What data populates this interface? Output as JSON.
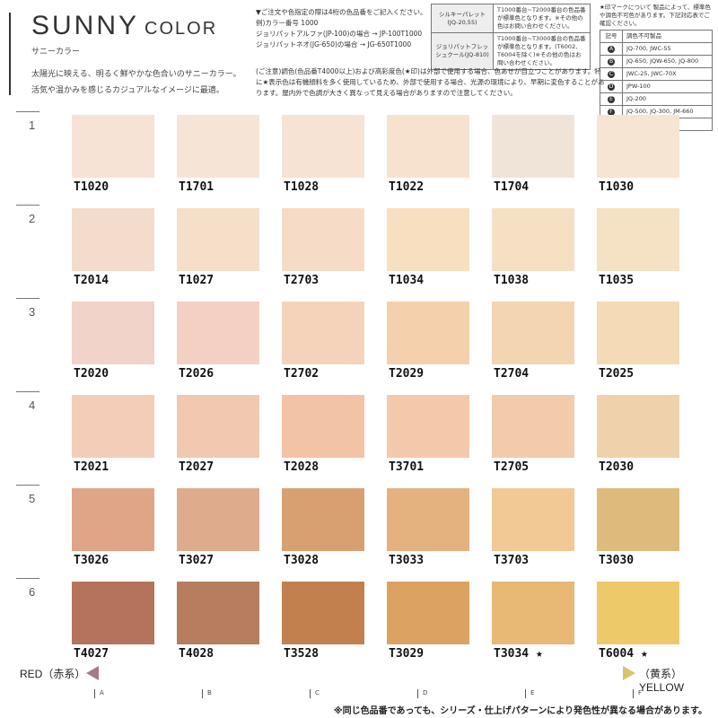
{
  "header": {
    "title": "SUNNY",
    "title_suffix": "COLOR",
    "subtitle": "サニーカラー",
    "description": [
      "太陽光に映える、明るく鮮やかな色合いのサニーカラー。",
      "活気や温かみを感じるカジュアルなイメージに最適。"
    ]
  },
  "order_notes": [
    "▼ご注文や色指定の際は4桁の色品番をご記入ください。",
    "例)カラー番号 1000",
    "ジョリパットアルファ(JP-100)の場合 → JP-100T1000",
    "ジョリパットネオ(JG-650)の場合 → JG-650T1000"
  ],
  "product_table": {
    "rows": [
      [
        "シルキーパレット(JQ-20,55)",
        "T1000番台~T2000番台の色品番が標準色となります。※その他の色はお問い合わせください。"
      ],
      [
        "ジョリパットフレッシュクール(JQ-810)",
        "T1000番台~T3000番台の色品番が標準色となります。(T6002、T6004を除く)※その他の色はお問い合わせください。"
      ]
    ]
  },
  "caution": "(ご注意)調色(色品番T4000以上)および高彩度色(★印)は外部で使用する場合、色あせが目立つことがあります。特に★表示色は有機顔料を多く使用しているため、外部で使用する場合、光源の環境により、早期に変色することがあります。屋内外で色調が大きく異なって見える場合がありますので注意してください。",
  "legend": {
    "note": "★印マークについて 製品によって、標準色や調色不可色があります。下記対応表でご確認ください。",
    "header": [
      "記号",
      "調色不可製品"
    ],
    "rows": [
      [
        "A",
        "JQ-700, JWC-55"
      ],
      [
        "B",
        "JQ-650, JQW-650, JQ-800"
      ],
      [
        "C",
        "JWC-25, JWC-70X"
      ],
      [
        "D",
        "JPW-100"
      ],
      [
        "E",
        "JQ-200"
      ],
      [
        "F",
        "JQ-500, JQ-300, JM-660"
      ],
      [
        "G",
        "JQ-620, JQ-820"
      ]
    ]
  },
  "rows": [
    {
      "label": "1",
      "swatches": [
        {
          "code": "T1020",
          "color": "#f6e3d6"
        },
        {
          "code": "T1701",
          "color": "#f6e4d7"
        },
        {
          "code": "T1028",
          "color": "#f7e3d3"
        },
        {
          "code": "T1022",
          "color": "#f7e2d0"
        },
        {
          "code": "T1704",
          "color": "#f0e4d9"
        },
        {
          "code": "T1030",
          "color": "#f6e5d3"
        }
      ]
    },
    {
      "label": "2",
      "swatches": [
        {
          "code": "T2014",
          "color": "#f3dccc"
        },
        {
          "code": "T1027",
          "color": "#f5dfc9"
        },
        {
          "code": "T2703",
          "color": "#f6dcc6"
        },
        {
          "code": "T1034",
          "color": "#f7dfc0"
        },
        {
          "code": "T1038",
          "color": "#f6e0c4"
        },
        {
          "code": "T1035",
          "color": "#f5e1c3"
        }
      ]
    },
    {
      "label": "3",
      "swatches": [
        {
          "code": "T2020",
          "color": "#f1d3c9"
        },
        {
          "code": "T2026",
          "color": "#f4cfc4"
        },
        {
          "code": "T2702",
          "color": "#f5d3bb"
        },
        {
          "code": "T2029",
          "color": "#f4d0ad"
        },
        {
          "code": "T2704",
          "color": "#f3d5b2"
        },
        {
          "code": "T2025",
          "color": "#f4dbb5"
        }
      ]
    },
    {
      "label": "4",
      "swatches": [
        {
          "code": "T2021",
          "color": "#f3cdb8"
        },
        {
          "code": "T2027",
          "color": "#f1c8b0"
        },
        {
          "code": "T2028",
          "color": "#f2c3a5"
        },
        {
          "code": "T3701",
          "color": "#f4c9ab"
        },
        {
          "code": "T2705",
          "color": "#f2cbab"
        },
        {
          "code": "T2030",
          "color": "#efd1ac"
        }
      ]
    },
    {
      "label": "5",
      "swatches": [
        {
          "code": "T3026",
          "color": "#dea586"
        },
        {
          "code": "T3027",
          "color": "#dfab8d"
        },
        {
          "code": "T3028",
          "color": "#d8a070"
        },
        {
          "code": "T3033",
          "color": "#e4b27e"
        },
        {
          "code": "T3703",
          "color": "#f2c995"
        },
        {
          "code": "T3030",
          "color": "#dcbb7d"
        }
      ]
    },
    {
      "label": "6",
      "swatches": [
        {
          "code": "T4027",
          "color": "#b5735c"
        },
        {
          "code": "T4028",
          "color": "#b67d5f"
        },
        {
          "code": "T3528",
          "color": "#c2804f"
        },
        {
          "code": "T3029",
          "color": "#dba262"
        },
        {
          "code": "T3034 ★",
          "color": "#e8b875"
        },
        {
          "code": "T6004 ★",
          "color": "#eec969"
        }
      ]
    }
  ],
  "scale": {
    "left": "RED（赤系）",
    "right": "（黄系）YELLOW",
    "columns": [
      "A",
      "B",
      "C",
      "D",
      "E",
      "F"
    ]
  },
  "footnote": "※同じ色品番であっても、シリーズ・仕上げパターンにより発色性が異なる場合があります。"
}
